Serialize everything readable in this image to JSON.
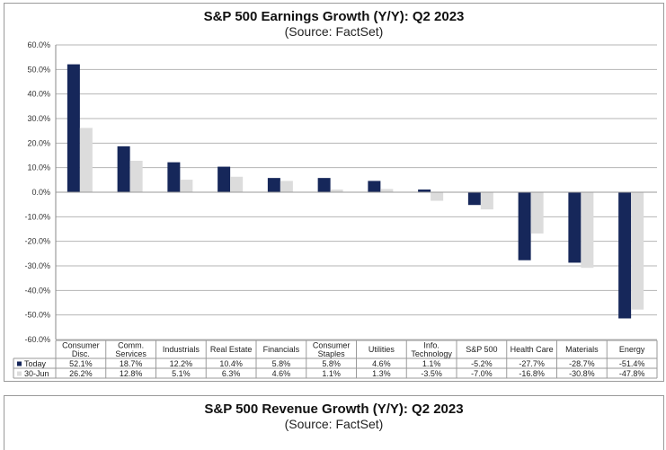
{
  "chart_data": [
    {
      "type": "bar",
      "title": "S&P 500 Earnings Growth (Y/Y): Q2 2023",
      "subtitle": "(Source: FactSet)",
      "xlabel": "",
      "ylabel": "",
      "ylim": [
        -60,
        60
      ],
      "yticks": [
        60,
        50,
        40,
        30,
        20,
        10,
        0,
        -10,
        -20,
        -30,
        -40,
        -50,
        -60
      ],
      "ytick_labels": [
        "60.0%",
        "50.0%",
        "40.0%",
        "30.0%",
        "20.0%",
        "10.0%",
        "0.0%",
        "-10.0%",
        "-20.0%",
        "-30.0%",
        "-40.0%",
        "-50.0%",
        "-60.0%"
      ],
      "grid": true,
      "legend_placement": "data-table-bottom",
      "categories": [
        [
          "Consumer",
          "Disc."
        ],
        [
          "Comm.",
          "Services"
        ],
        [
          "Industrials"
        ],
        [
          "Real Estate"
        ],
        [
          "Financials"
        ],
        [
          "Consumer",
          "Staples"
        ],
        [
          "Utilities"
        ],
        [
          "Info.",
          "Technology"
        ],
        [
          "S&P 500"
        ],
        [
          "Health Care"
        ],
        [
          "Materials"
        ],
        [
          "Energy"
        ]
      ],
      "series": [
        {
          "name": "Today",
          "color": "#16275a",
          "values": [
            52.1,
            18.7,
            12.2,
            10.4,
            5.8,
            5.8,
            4.6,
            1.1,
            -5.2,
            -27.7,
            -28.7,
            -51.4
          ],
          "labels": [
            "52.1%",
            "18.7%",
            "12.2%",
            "10.4%",
            "5.8%",
            "5.8%",
            "4.6%",
            "1.1%",
            "-5.2%",
            "-27.7%",
            "-28.7%",
            "-51.4%"
          ]
        },
        {
          "name": "30-Jun",
          "color": "#dcdcdc",
          "values": [
            26.2,
            12.8,
            5.1,
            6.3,
            4.6,
            1.1,
            1.3,
            -3.5,
            -7.0,
            -16.8,
            -30.8,
            -47.8
          ],
          "labels": [
            "26.2%",
            "12.8%",
            "5.1%",
            "6.3%",
            "4.6%",
            "1.1%",
            "1.3%",
            "-3.5%",
            "-7.0%",
            "-16.8%",
            "-30.8%",
            "-47.8%"
          ]
        }
      ]
    },
    {
      "type": "bar",
      "title": "S&P 500 Revenue Growth (Y/Y): Q2 2023",
      "subtitle": "(Source: FactSet)"
    }
  ],
  "colors": {
    "grid": "#b4b4b4",
    "border": "#9a9a9a",
    "axis_text": "#333333"
  }
}
